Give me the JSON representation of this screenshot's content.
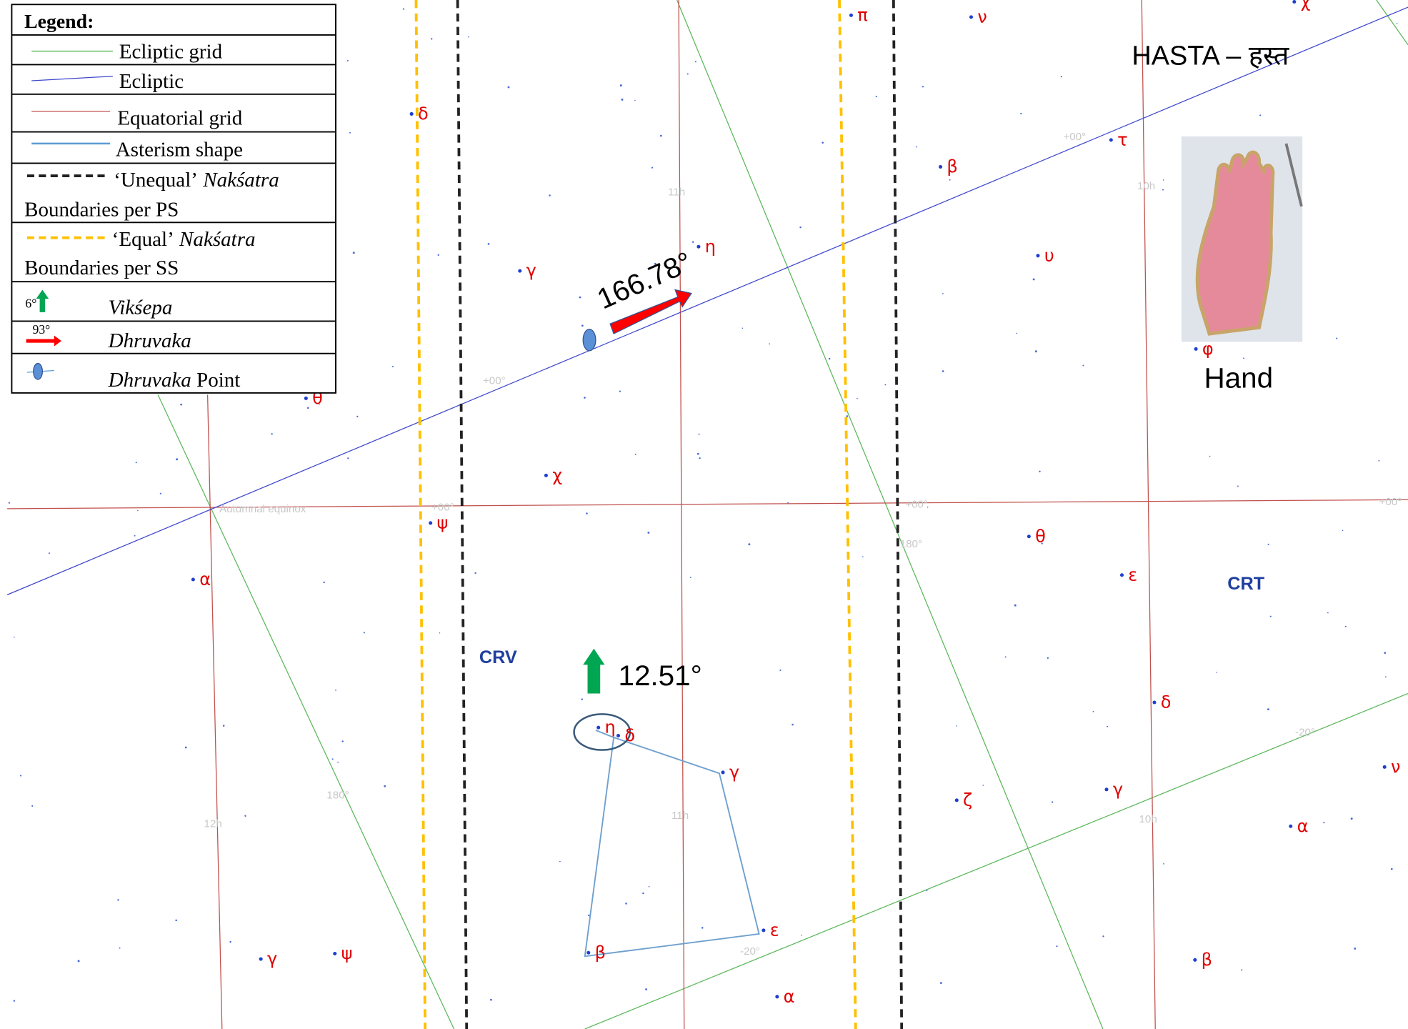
{
  "legend": {
    "title": "Legend:",
    "ecliptic_grid": "Ecliptic grid",
    "ecliptic": "Ecliptic",
    "equatorial_grid": "Equatorial grid",
    "asterism": "Asterism shape",
    "unequal": {
      "quote": "‘Unequal’",
      "term": "Nakśatra",
      "rest": "Boundaries per PS"
    },
    "equal": {
      "quote": "‘Equal’",
      "term": "Nakśatra",
      "rest": "Boundaries per SS"
    },
    "vikshepa": {
      "sample": "6°",
      "label": "Vikśepa"
    },
    "dhruvaka": {
      "sample": "93°",
      "label": "Dhruvaka"
    },
    "point": {
      "term": "Dhruvaka",
      "rest": "Point"
    }
  },
  "title": "HASTA – हस्त",
  "image_caption": "Hand",
  "dhruvaka": "166.78°",
  "vikshepa": "12.51°",
  "constellations": [
    "CRV",
    "CRT"
  ],
  "stars": [
    "π",
    "ν",
    "χ",
    "δ",
    "τ",
    "β",
    "η",
    "γ",
    "υ",
    "φ",
    "θ",
    "χ",
    "ψ",
    "θ",
    "ε",
    "α",
    "δ",
    "η",
    "δ",
    "γ",
    "ν",
    "ζ",
    "γ",
    "α",
    "ε",
    "β",
    "γ",
    "ψ",
    "β",
    "α"
  ],
  "grid_labels": [
    "11h",
    "10h",
    "+00°",
    "+00°",
    "+00°",
    "+00°",
    "+00°",
    "Autumnal equinox",
    "-20°",
    "-20°",
    "180°",
    "12h",
    "11h",
    "10h",
    "180°"
  ]
}
